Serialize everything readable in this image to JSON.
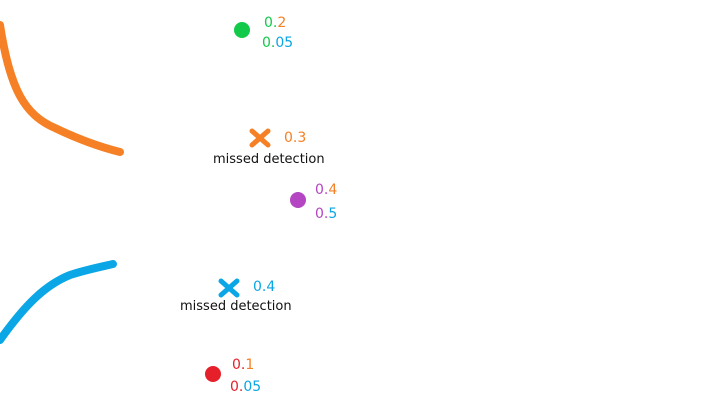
{
  "colors": {
    "orange": "#f58025",
    "blue": "#0aa6e6",
    "green": "#12c94a",
    "purple": "#b445c3",
    "red": "#e5202a",
    "text": "#111111"
  },
  "detections": [
    {
      "id": "green",
      "marker": "dot",
      "color": "#12c94a",
      "value1": {
        "prefix": "0.",
        "prefix_color": "#12c94a",
        "digit": "2",
        "digit_color": "#f58025"
      },
      "value2": {
        "prefix": "0.",
        "prefix_color": "#12c94a",
        "digit": "05",
        "digit_color": "#0aa6e6"
      }
    },
    {
      "id": "orange-miss",
      "marker": "cross",
      "color": "#f58025",
      "value1": {
        "prefix": "0.",
        "prefix_color": "#f58025",
        "digit": "3",
        "digit_color": "#f58025"
      },
      "note": "missed detection"
    },
    {
      "id": "purple",
      "marker": "dot",
      "color": "#b445c3",
      "value1": {
        "prefix": "0.",
        "prefix_color": "#b445c3",
        "digit": "4",
        "digit_color": "#f58025"
      },
      "value2": {
        "prefix": "0.",
        "prefix_color": "#b445c3",
        "digit": "5",
        "digit_color": "#0aa6e6"
      }
    },
    {
      "id": "blue-miss",
      "marker": "cross",
      "color": "#0aa6e6",
      "value1": {
        "prefix": "0.",
        "prefix_color": "#0aa6e6",
        "digit": "4",
        "digit_color": "#0aa6e6"
      },
      "note": "missed detection"
    },
    {
      "id": "red",
      "marker": "dot",
      "color": "#e5202a",
      "value1": {
        "prefix": "0.",
        "prefix_color": "#e5202a",
        "digit": "1",
        "digit_color": "#f58025"
      },
      "value2": {
        "prefix": "0.",
        "prefix_color": "#e5202a",
        "digit": "05",
        "digit_color": "#0aa6e6"
      }
    }
  ]
}
